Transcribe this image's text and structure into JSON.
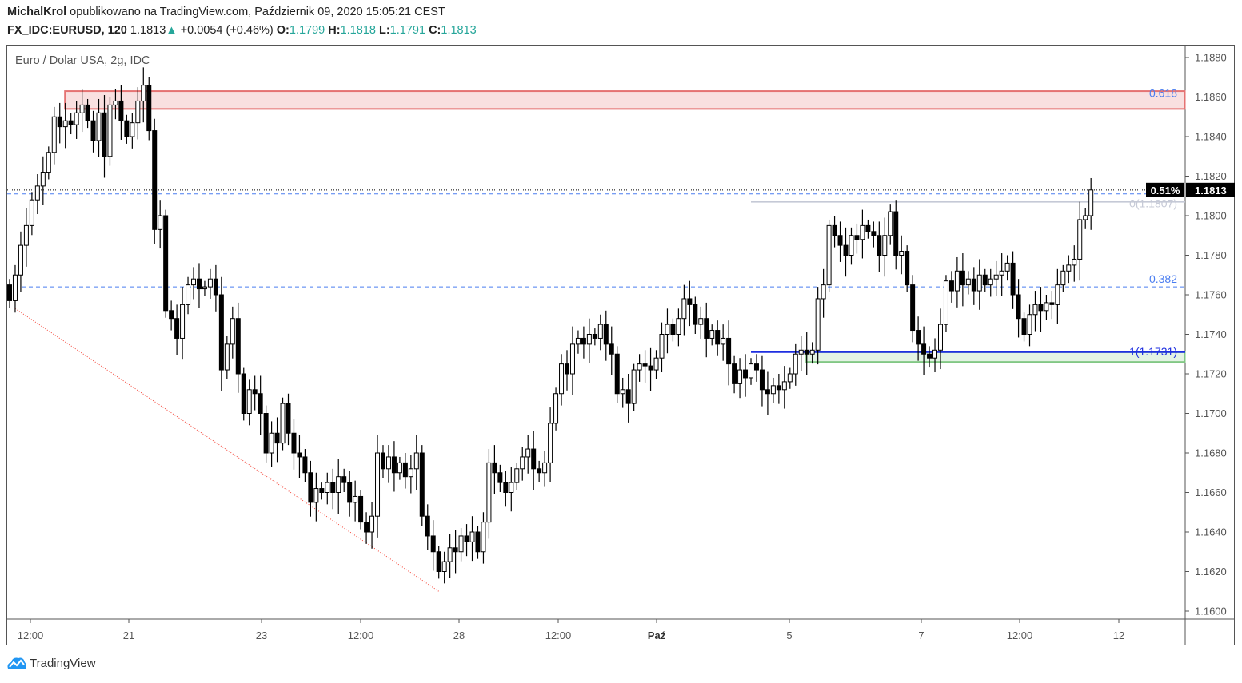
{
  "header": {
    "author": "MichalKrol",
    "published": "opublikowano na TradingView.com, Październik 09, 2020 15:05:21 CEST",
    "symbol": "FX_IDC:EURUSD, 120",
    "last": "1.1813",
    "change": "+0.0054 (+0.46%)",
    "o_label": "O:",
    "o": "1.1799",
    "h_label": "H:",
    "h": "1.1818",
    "l_label": "L:",
    "l": "1.1791",
    "c_label": "C:",
    "c": "1.1813",
    "up_icon": "triangle-up-icon"
  },
  "subtitle": "Euro / Dolar USA, 2g, IDC",
  "logo_text": "TradingView",
  "colors": {
    "up": "#ffffff",
    "down": "#000000",
    "accent": "#26a69a",
    "zone_red": "#e57373",
    "zone_green": "#81c784",
    "fib": "#2962ff"
  },
  "chart_data": {
    "type": "candlestick",
    "ylim": [
      1.1595,
      1.189
    ],
    "yticks": [
      "1.1880",
      "1.1860",
      "1.1840",
      "1.1820",
      "1.1800",
      "1.1780",
      "1.1760",
      "1.1740",
      "1.1720",
      "1.1700",
      "1.1680",
      "1.1660",
      "1.1640",
      "1.1620",
      "1.1600"
    ],
    "xticks": [
      "12:00",
      "21",
      "23",
      "12:00",
      "28",
      "12:00",
      "Paź",
      "5",
      "7",
      "12:00",
      "12"
    ],
    "xtick_bars": [
      4,
      21,
      45,
      63,
      81,
      99,
      117,
      141,
      165,
      183,
      201
    ],
    "close": [
      1.1757,
      1.177,
      1.1785,
      1.1795,
      1.1808,
      1.1815,
      1.1822,
      1.1832,
      1.185,
      1.1845,
      1.1848,
      1.1846,
      1.1852,
      1.1856,
      1.1848,
      1.1838,
      1.1852,
      1.183,
      1.1856,
      1.1858,
      1.1848,
      1.184,
      1.1847,
      1.1858,
      1.1866,
      1.1843,
      1.1793,
      1.18,
      1.1752,
      1.1748,
      1.1738,
      1.1755,
      1.1765,
      1.1768,
      1.1763,
      1.1764,
      1.1768,
      1.176,
      1.1722,
      1.1735,
      1.1748,
      1.172,
      1.17,
      1.1712,
      1.171,
      1.17,
      1.168,
      1.169,
      1.1685,
      1.1705,
      1.169,
      1.168,
      1.1678,
      1.167,
      1.1655,
      1.1662,
      1.166,
      1.1665,
      1.166,
      1.1668,
      1.1665,
      1.1655,
      1.1658,
      1.1645,
      1.164,
      1.1648,
      1.168,
      1.1672,
      1.1678,
      1.167,
      1.1675,
      1.1668,
      1.1672,
      1.168,
      1.1648,
      1.1638,
      1.163,
      1.162,
      1.1625,
      1.1632,
      1.163,
      1.1638,
      1.1635,
      1.164,
      1.163,
      1.1645,
      1.1675,
      1.167,
      1.1665,
      1.166,
      1.1665,
      1.1672,
      1.1678,
      1.1682,
      1.1672,
      1.167,
      1.1675,
      1.1695,
      1.171,
      1.1725,
      1.172,
      1.1735,
      1.1738,
      1.1735,
      1.174,
      1.1738,
      1.1745,
      1.1735,
      1.173,
      1.171,
      1.1712,
      1.1705,
      1.1722,
      1.1725,
      1.1724,
      1.1722,
      1.1728,
      1.174,
      1.1745,
      1.174,
      1.1748,
      1.1758,
      1.1755,
      1.1745,
      1.1748,
      1.1738,
      1.1742,
      1.1735,
      1.1738,
      1.1725,
      1.1715,
      1.1722,
      1.1718,
      1.1725,
      1.1722,
      1.1712,
      1.171,
      1.1714,
      1.1712,
      1.1716,
      1.172,
      1.173,
      1.1732,
      1.173,
      1.1732,
      1.1758,
      1.1765,
      1.1795,
      1.179,
      1.1785,
      1.178,
      1.179,
      1.1788,
      1.1795,
      1.1792,
      1.179,
      1.178,
      1.179,
      1.1802,
      1.178,
      1.1782,
      1.1765,
      1.1742,
      1.1735,
      1.173,
      1.1728,
      1.1732,
      1.1745,
      1.1767,
      1.1762,
      1.1772,
      1.1765,
      1.1768,
      1.1762,
      1.177,
      1.1765,
      1.1768,
      1.177,
      1.1772,
      1.1776,
      1.176,
      1.1748,
      1.174,
      1.175,
      1.1755,
      1.1752,
      1.1756,
      1.1755,
      1.1765,
      1.1772,
      1.1775,
      1.1778,
      1.1798,
      1.18,
      1.1813
    ],
    "first_open": 1.1765,
    "last_price": "1.1813",
    "last_change_label": "0.51%",
    "zones": [
      {
        "name": "resistance",
        "from": 1.1854,
        "to": 1.1863,
        "start_bar": 10,
        "color": "#e57373"
      },
      {
        "name": "support",
        "from": 1.1726,
        "to": 1.1731,
        "start_bar": 143,
        "color": "#81c784"
      }
    ],
    "horizontal_lines": [
      {
        "price": 1.1858,
        "label": "0.618",
        "style": "dashed",
        "color": "#4a7df0"
      },
      {
        "price": 1.1811,
        "label": "",
        "style": "dashed",
        "color": "#4a7df0"
      },
      {
        "price": 1.1764,
        "label": "0.382",
        "style": "dashed",
        "color": "#4a7df0"
      }
    ],
    "fib": [
      {
        "price": 1.1807,
        "label": "0(1.1807)",
        "start_bar": 133,
        "color": "#c5c9d6"
      },
      {
        "price": 1.1731,
        "label": "1(1.1731)",
        "start_bar": 133,
        "color": "#1e2fe0"
      }
    ],
    "trendline": {
      "from": [
        1,
        1.1753
      ],
      "to": [
        77,
        1.161
      ],
      "color": "#f44336"
    }
  }
}
